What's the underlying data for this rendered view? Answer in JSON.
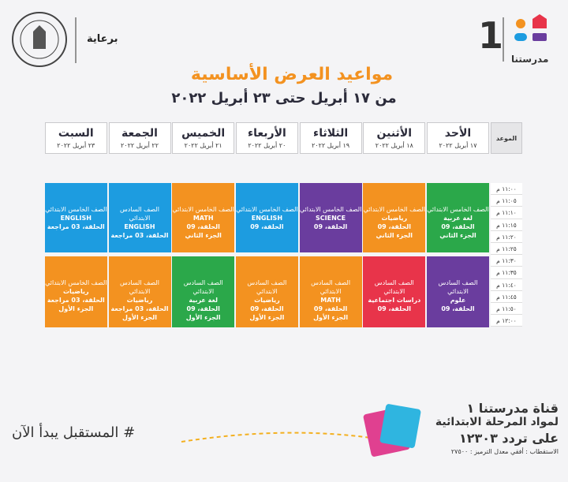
{
  "header": {
    "sponsor": "برعاية",
    "logo_number": "1",
    "logo_name": "مدرستنا",
    "title": "مواعيد العرض الأساسية",
    "subtitle": "من ١٧ أبريل حتى ٢٣ أبريل ٢٠٢٢"
  },
  "table": {
    "time_header": "الموعد",
    "days": [
      {
        "name": "الأحد",
        "date": "١٧ أبريل ٢٠٢٢"
      },
      {
        "name": "الأثنين",
        "date": "١٨ أبريل ٢٠٢٢"
      },
      {
        "name": "الثلاثاء",
        "date": "١٩ أبريل ٢٠٢٢"
      },
      {
        "name": "الأربعاء",
        "date": "٢٠ أبريل ٢٠٢٢"
      },
      {
        "name": "الخميس",
        "date": "٢١ أبريل ٢٠٢٢"
      },
      {
        "name": "الجمعة",
        "date": "٢٢ أبريل ٢٠٢٢"
      },
      {
        "name": "السبت",
        "date": "٢٣ أبريل ٢٠٢٢"
      }
    ],
    "times": [
      "١١:٠٠ م",
      "١١:٠٥ م",
      "١١:١٠ م",
      "١١:١٥ م",
      "١١:٢٠ م",
      "١١:٢٥ م",
      "١١:٣٠ م",
      "١١:٣٥ م",
      "١١:٤٠ م",
      "١١:٤٥ م",
      "١١:٥٠ م",
      "١٢:٠٠ م"
    ],
    "rows": [
      [
        {
          "color": "#2ba84a",
          "lines": [
            "الصف الخامس الابتدائي",
            "لغة عربية",
            "الحلقة، 09",
            "الجزء الثاني"
          ]
        },
        {
          "color": "#f39220",
          "lines": [
            "الصف الخامس الابتدائي",
            "رياضيات",
            "الحلقة، 09",
            "الجزء الثاني"
          ]
        },
        {
          "color": "#6a3d9e",
          "lines": [
            "الصف الخامس الابتدائي",
            "SCIENCE",
            "الحلقة، 09"
          ]
        },
        {
          "color": "#1d9ce0",
          "lines": [
            "الصف الخامس الابتدائي",
            "ENGLISH",
            "الحلقة، 09"
          ]
        },
        {
          "color": "#f39220",
          "lines": [
            "الصف الخامس الابتدائي",
            "MATH",
            "الحلقة، 09",
            "الجزء الثاني"
          ]
        },
        {
          "color": "#1d9ce0",
          "lines": [
            "الصف السادس الابتدائي",
            "ENGLISH",
            "الحلقة، 03 مراجعة"
          ]
        },
        {
          "color": "#1d9ce0",
          "lines": [
            "الصف الخامس الابتدائي",
            "ENGLISH",
            "الحلقة، 03 مراجعة"
          ]
        }
      ],
      [
        {
          "color": "#6a3d9e",
          "lines": [
            "الصف السادس الابتدائي",
            "علوم",
            "الحلقة، 09"
          ]
        },
        {
          "color": "#e8344a",
          "lines": [
            "الصف السادس الابتدائي",
            "دراسات اجتماعية",
            "الحلقة، 09"
          ]
        },
        {
          "color": "#f39220",
          "lines": [
            "الصف السادس الابتدائي",
            "MATH",
            "الحلقة، 09",
            "الجزء الأول"
          ]
        },
        {
          "color": "#f39220",
          "lines": [
            "الصف السادس الابتدائي",
            "رياضيات",
            "الحلقة، 09",
            "الجزء الأول"
          ]
        },
        {
          "color": "#2ba84a",
          "lines": [
            "الصف السادس الابتدائي",
            "لغة عربية",
            "الحلقة، 09",
            "الجزء الأول"
          ]
        },
        {
          "color": "#f39220",
          "lines": [
            "الصف السادس الابتدائي",
            "رياضيات",
            "الحلقة، 03 مراجعة",
            "الجزء الأول"
          ]
        },
        {
          "color": "#f39220",
          "lines": [
            "الصف الخامس الابتدائي",
            "رياضيات",
            "الحلقة، 03 مراجعة",
            "الجزء الأول"
          ]
        }
      ]
    ]
  },
  "footer": {
    "hashtag": "# المستقبل يبدأ الآن",
    "channel": "قناة مدرستنا ١",
    "subjects": "لمواد المرحلة الابتدائية",
    "frequency": "على تردد ١٢٣٠٣",
    "technical": "الاستقطاب : أفقي معدل الترميز : ٢٧٥٠٠"
  }
}
